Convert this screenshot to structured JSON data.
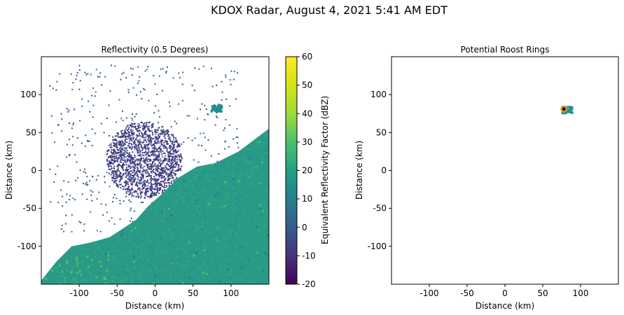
{
  "figure": {
    "suptitle": "KDOX Radar, August 4, 2021 5:41 AM EDT"
  },
  "chart_data": [
    {
      "type": "heatmap",
      "title": "Reflectivity (0.5 Degrees)",
      "xlabel": "Distance (km)",
      "ylabel": "Distance (km)",
      "xlim": [
        -150,
        150
      ],
      "ylim": [
        -150,
        150
      ],
      "xticks": [
        -100,
        -50,
        0,
        50,
        100
      ],
      "yticks": [
        -100,
        -50,
        0,
        50,
        100
      ],
      "colormap": "viridis",
      "colorbar": {
        "label": "Equivalent Reflectivity Factor (dBZ)",
        "range": [
          -20,
          60
        ],
        "ticks": [
          -20,
          -10,
          0,
          10,
          20,
          30,
          40,
          50,
          60
        ]
      },
      "features": {
        "ocean_clutter": {
          "description_value_dbz": [
            15,
            30
          ],
          "boundary": [
            [
              -150,
              -150
            ],
            [
              -150,
              -145
            ],
            [
              -130,
              -120
            ],
            [
              -110,
              -100
            ],
            [
              -85,
              -95
            ],
            [
              -60,
              -88
            ],
            [
              -40,
              -75
            ],
            [
              -25,
              -65
            ],
            [
              -10,
              -48
            ],
            [
              10,
              -30
            ],
            [
              30,
              -10
            ],
            [
              55,
              5
            ],
            [
              80,
              10
            ],
            [
              110,
              25
            ],
            [
              130,
              40
            ],
            [
              150,
              55
            ],
            [
              150,
              -150
            ]
          ]
        },
        "roost_echo": {
          "x": 80,
          "y": 83,
          "dbz": 18
        },
        "biological_scatter_center": {
          "x": -15,
          "y": 15,
          "dbz": [
            -15,
            5
          ]
        }
      }
    },
    {
      "type": "heatmap",
      "title": "Potential Roost Rings",
      "xlabel": "Distance (km)",
      "ylabel": "Distance (km)",
      "xlim": [
        -150,
        150
      ],
      "ylim": [
        -150,
        150
      ],
      "xticks": [
        -100,
        -50,
        0,
        50,
        100
      ],
      "yticks": [
        -100,
        -50,
        0,
        50,
        100
      ],
      "roost": {
        "x": 78,
        "y": 81,
        "marker": "ring",
        "color_edge": "#ff8c00"
      }
    }
  ]
}
